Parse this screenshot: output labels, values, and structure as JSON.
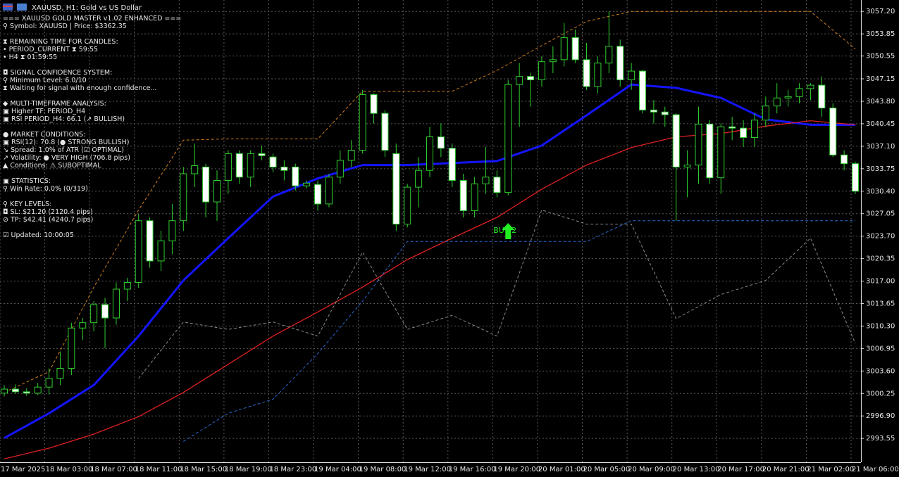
{
  "chart_data": {
    "type": "candlestick",
    "title": "XAUUSD, H1:  Gold vs US Dollar",
    "categories": [
      "17 Mar 2025",
      null,
      null,
      null,
      "18 Mar 03:00",
      null,
      null,
      null,
      "18 Mar 07:00",
      null,
      null,
      null,
      "18 Mar 11:00",
      null,
      null,
      null,
      "18 Mar 15:00",
      null,
      null,
      null,
      "18 Mar 19:00",
      null,
      null,
      null,
      "18 Mar 23:00",
      null,
      null,
      null,
      "19 Mar 04:00",
      null,
      null,
      null,
      "19 Mar 08:00",
      null,
      null,
      null,
      "19 Mar 12:00",
      null,
      null,
      null,
      "19 Mar 16:00",
      null,
      null,
      null,
      "19 Mar 20:00",
      null,
      null,
      null,
      "20 Mar 01:00",
      null,
      null,
      null,
      "20 Mar 05:00",
      null,
      null,
      null,
      "20 Mar 09:00",
      null,
      null,
      null,
      "20 Mar 13:00",
      null,
      null,
      null,
      "20 Mar 17:00",
      null,
      null,
      null,
      "20 Mar 21:00",
      null,
      null,
      null,
      "21 Mar 02:00",
      null,
      null,
      null,
      "21 Mar 06:00"
    ],
    "open": [
      3000.3,
      3000.9,
      3000.5,
      3000.3,
      3001.2,
      3002.5,
      3004.0,
      3010.0,
      3010.8,
      3013.5,
      3011.5,
      3015.8,
      3016.8,
      3026.0,
      3020.0,
      3023.0,
      3026.0,
      3033.0,
      3034.0,
      3028.8,
      3032.0,
      3036.0,
      3032.5,
      3036.0,
      3035.5,
      3034.0,
      3034.0,
      3031.2,
      3031.4,
      3028.5,
      3032.5,
      3035.0,
      3036.5,
      3044.8,
      3042.0,
      3036.0,
      3025.5,
      3031.0,
      3033.5,
      3038.5,
      3036.8,
      3032.0,
      3027.5,
      3031.5,
      3032.5,
      3030.2,
      3046.3,
      3047.5,
      3047.0,
      3049.7,
      3050.0,
      3053.3,
      3050.0,
      3046.0,
      3049.5,
      3052.0,
      3047.0,
      3048.3,
      3042.5,
      3042.2,
      3041.8,
      3034.0,
      3034.3,
      3040.4,
      3032.4,
      3040.0,
      3039.8,
      3038.4,
      3041.0,
      3043.1,
      3044.3,
      3044.5,
      3045.7,
      3046.2,
      3042.8,
      3035.8,
      3034.5
    ],
    "high": [
      3001.5,
      3001.6,
      3001.0,
      3001.8,
      3004.0,
      3006.5,
      3010.8,
      3011.5,
      3014.0,
      3014.5,
      3016.8,
      3017.5,
      3027.0,
      3026.5,
      3024.5,
      3028.5,
      3034.0,
      3037.5,
      3034.5,
      3033.5,
      3036.5,
      3036.5,
      3036.5,
      3037.2,
      3036.0,
      3035.0,
      3034.5,
      3032.0,
      3032.0,
      3033.0,
      3036.5,
      3038.0,
      3045.5,
      3045.0,
      3042.5,
      3037.5,
      3031.5,
      3035.5,
      3040.0,
      3040.5,
      3037.5,
      3033.0,
      3032.5,
      3037.0,
      3033.5,
      3047.0,
      3049.5,
      3048.0,
      3050.5,
      3052.0,
      3055.5,
      3054.5,
      3052.5,
      3050.5,
      3057.2,
      3053.0,
      3049.5,
      3048.5,
      3044.0,
      3043.0,
      3042.0,
      3036.5,
      3043.0,
      3041.0,
      3040.5,
      3041.5,
      3041.0,
      3042.0,
      3044.5,
      3046.5,
      3045.5,
      3046.5,
      3046.5,
      3047.5,
      3043.5,
      3036.5,
      3034.8
    ],
    "low": [
      2999.8,
      3000.2,
      2999.9,
      3000.0,
      3000.1,
      3001.5,
      3003.0,
      3008.2,
      3009.5,
      3007.0,
      3010.5,
      3014.0,
      3016.0,
      3019.0,
      3018.5,
      3021.0,
      3024.5,
      3031.0,
      3026.5,
      3026.0,
      3030.0,
      3031.5,
      3031.0,
      3035.0,
      3033.2,
      3032.0,
      3030.5,
      3030.8,
      3027.5,
      3028.0,
      3031.5,
      3034.0,
      3036.0,
      3040.5,
      3035.5,
      3024.5,
      3025.0,
      3028.0,
      3032.5,
      3035.5,
      3031.0,
      3026.5,
      3026.5,
      3030.0,
      3029.5,
      3029.8,
      3040.0,
      3043.0,
      3046.0,
      3048.0,
      3049.0,
      3049.5,
      3045.5,
      3045.0,
      3048.0,
      3046.0,
      3045.5,
      3042.0,
      3040.5,
      3040.0,
      3026.0,
      3029.5,
      3031.5,
      3031.5,
      3030.0,
      3038.0,
      3037.0,
      3037.0,
      3040.0,
      3042.0,
      3043.0,
      3043.5,
      3044.0,
      3041.5,
      3035.5,
      3033.5,
      3030.0
    ],
    "close": [
      3000.9,
      3000.5,
      3000.3,
      3001.2,
      3002.5,
      3004.0,
      3010.0,
      3010.8,
      3013.5,
      3011.5,
      3015.8,
      3016.8,
      3026.0,
      3020.0,
      3023.0,
      3026.0,
      3033.0,
      3034.2,
      3028.8,
      3032.0,
      3036.0,
      3032.5,
      3036.0,
      3035.7,
      3034.0,
      3033.5,
      3031.2,
      3031.6,
      3028.5,
      3032.5,
      3035.0,
      3036.5,
      3044.8,
      3042.0,
      3036.5,
      3025.5,
      3031.0,
      3033.5,
      3038.5,
      3036.8,
      3032.0,
      3027.5,
      3031.5,
      3032.5,
      3030.2,
      3046.3,
      3047.5,
      3047.0,
      3049.7,
      3050.0,
      3053.3,
      3050.0,
      3046.0,
      3049.5,
      3052.0,
      3047.0,
      3048.3,
      3042.5,
      3042.2,
      3041.8,
      3034.0,
      3034.3,
      3040.4,
      3032.4,
      3040.0,
      3039.8,
      3038.4,
      3041.0,
      3043.1,
      3044.3,
      3044.5,
      3045.7,
      3046.2,
      3042.8,
      3035.8,
      3034.5,
      3030.4
    ],
    "up_color": "#2fcf2f",
    "down_color": "#ffffff",
    "ylim": [
      2990.0,
      3058.9
    ],
    "yticks": [
      {
        "value": 3057.2,
        "label": "3057.20"
      },
      {
        "value": 3053.85,
        "label": "3053.85"
      },
      {
        "value": 3050.55,
        "label": "3050.55"
      },
      {
        "value": 3047.15,
        "label": "3047.15"
      },
      {
        "value": 3043.8,
        "label": "3043.80"
      },
      {
        "value": 3040.45,
        "label": "3040.45"
      },
      {
        "value": 3037.1,
        "label": "3037.10"
      },
      {
        "value": 3033.75,
        "label": "3033.75"
      },
      {
        "value": 3030.4,
        "label": "3030.40"
      },
      {
        "value": 3027.05,
        "label": "3027.05"
      },
      {
        "value": 3023.7,
        "label": "3023.70"
      },
      {
        "value": 3020.35,
        "label": "3020.35"
      },
      {
        "value": 3017.0,
        "label": "3017.00"
      },
      {
        "value": 3013.65,
        "label": "3013.65"
      },
      {
        "value": 3010.3,
        "label": "3010.30"
      },
      {
        "value": 3006.95,
        "label": "3006.95"
      },
      {
        "value": 3003.6,
        "label": "3003.60"
      },
      {
        "value": 3000.25,
        "label": "3000.25"
      },
      {
        "value": 2996.9,
        "label": "2996.90"
      },
      {
        "value": 2993.55,
        "label": "2993.55"
      }
    ],
    "grid": true,
    "overlays": [
      {
        "color": "#1414ff",
        "dash": false,
        "width": 3,
        "x": [
          0,
          4,
          8,
          12,
          16,
          20,
          24,
          28,
          32,
          36,
          40,
          44,
          48,
          52,
          56,
          60,
          64,
          68,
          72,
          76
        ],
        "values": [
          2993.6,
          2997.3,
          3001.5,
          3008.8,
          3017.1,
          3023.4,
          3029.6,
          3032.3,
          3034.3,
          3034.3,
          3034.6,
          3034.9,
          3037.2,
          3041.7,
          3046.3,
          3045.8,
          3044.3,
          3041.1,
          3040.3,
          3040.3
        ]
      },
      {
        "color": "#e02020",
        "dash": false,
        "width": 1.3,
        "x": [
          0,
          4,
          8,
          12,
          16,
          20,
          24,
          28,
          32,
          36,
          40,
          44,
          48,
          52,
          56,
          60,
          64,
          68,
          72,
          76
        ],
        "values": [
          2990.5,
          2992.1,
          2994.2,
          2996.8,
          3000.4,
          3004.6,
          3008.8,
          3012.4,
          3016.1,
          3020.2,
          3023.4,
          3026.5,
          3030.7,
          3034.3,
          3036.9,
          3038.5,
          3039.0,
          3040.1,
          3040.9,
          3040.3
        ]
      },
      {
        "color": "#d2801e",
        "dash": true,
        "width": 1,
        "x": [
          0,
          4,
          8,
          12,
          16,
          20,
          24,
          28,
          32,
          36,
          40,
          44,
          48,
          52,
          56,
          60,
          64,
          68,
          72,
          76
        ],
        "values": [
          3000.4,
          3003.5,
          3016.1,
          3027.6,
          3038.0,
          3038.2,
          3038.2,
          3038.2,
          3045.3,
          3045.3,
          3045.3,
          3048.4,
          3052.1,
          3055.7,
          3057.2,
          3057.2,
          3057.2,
          3057.2,
          3057.2,
          3051.6
        ]
      },
      {
        "color": "#2a6ad0",
        "dash": true,
        "width": 1,
        "x": [
          0,
          4,
          8,
          12,
          16,
          20,
          24,
          28,
          32,
          36,
          40,
          44,
          48,
          52,
          56,
          60,
          64,
          68,
          72,
          76
        ],
        "values": [
          null,
          null,
          null,
          null,
          2993.1,
          2997.3,
          2999.4,
          3006.2,
          3014.0,
          3022.9,
          3022.9,
          3022.9,
          3022.9,
          3022.9,
          3026.0,
          3026.0,
          3026.0,
          3026.0,
          3026.0,
          3026.0
        ]
      },
      {
        "color": "#8a8a8a",
        "dash": true,
        "width": 1,
        "x": [
          0,
          4,
          8,
          12,
          16,
          20,
          24,
          28,
          32,
          36,
          40,
          44,
          48,
          52,
          56,
          60,
          64,
          68,
          72,
          76
        ],
        "values": [
          null,
          null,
          null,
          3002.5,
          3010.9,
          3009.8,
          3010.9,
          3008.8,
          3021.3,
          3009.8,
          3011.9,
          3008.8,
          3027.6,
          3025.5,
          3025.5,
          3011.4,
          3015.0,
          3017.1,
          3023.4,
          3007.7
        ]
      }
    ],
    "annotations": [
      {
        "text": "BUY 2",
        "x": 45,
        "y": 3024.5,
        "color": "#22ee22"
      }
    ]
  },
  "panel": [
    [
      "=== XAUUSD GOLD MASTER v1.02 ENHANCED ===",
      "⚲ Symbol: XAUUSD | Price: $3362.35"
    ],
    [
      "⧗ REMAINING TIME FOR CANDLES:",
      "• PERIOD_CURRENT ⧗ 59:55",
      "• H4 ⧗ 01:59:55"
    ],
    [
      "◘ SIGNAL CONFIDENCE SYSTEM:",
      "⚲ Minimum Level: 6.0/10",
      "⧗ Waiting for signal with enough confidence..."
    ],
    [
      "◆ MULTI-TIMEFRAME ANALYSIS:",
      "▣ Higher TF: PERIOD_H4",
      "▣ RSI PERIOD_H4: 66.1 (↗ BULLISH)"
    ],
    [
      "● MARKET CONDITIONS:",
      "▣ RSI(12): 70.8 (● STRONG BULLISH)",
      "↘ Spread: 1.0% of ATR (☑ OPTIMAL)",
      "↗ Volatility: ● VERY HIGH (706.8 pips)",
      "▲ Conditions: ⚠ SUBOPTIMAL"
    ],
    [
      "▣ STATISTICS:",
      "⚲ Win Rate: 0.0% (0/319)"
    ],
    [
      "⚲ KEY LEVELS:",
      "◘ SL: $21.20 (2120.4 pips)",
      "⊘ TP: $42.41 (4240.7 pips)"
    ],
    [
      "☑ Updated: 10:00:05"
    ]
  ]
}
